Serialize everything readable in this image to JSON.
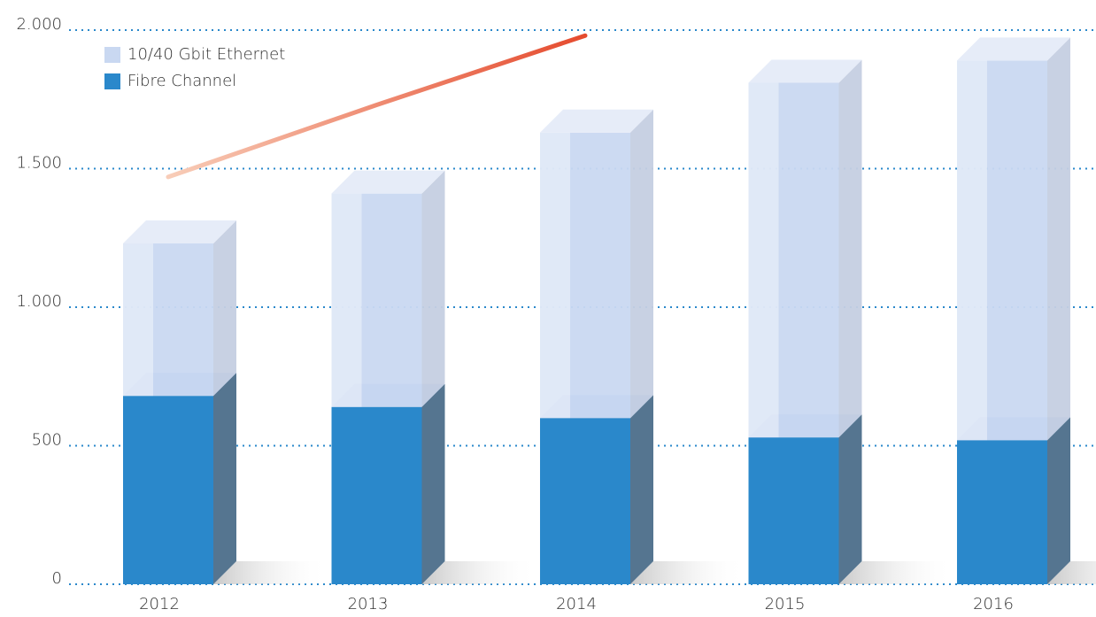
{
  "chart_data": {
    "type": "bar",
    "stacked": true,
    "three_d": true,
    "categories": [
      "2012",
      "2013",
      "2014",
      "2015",
      "2016"
    ],
    "series": [
      {
        "name": "Fibre Channel",
        "color": "#2a88cb",
        "values": [
          680,
          640,
          600,
          530,
          520
        ]
      },
      {
        "name": "10/40 Gbit Ethernet",
        "color": "#c9d8f1",
        "values": [
          550,
          770,
          1030,
          1280,
          1370
        ]
      },
      {
        "type": "line",
        "color": "#e54b2e",
        "values": [
          1470,
          1730,
          1980,
          null,
          null
        ]
      }
    ],
    "ylim": [
      0,
      2000
    ],
    "yticks": [
      0,
      500,
      {
        "value": 1000,
        "label": "1.000"
      },
      {
        "value": 1500,
        "label": "1.500"
      },
      {
        "value": 2000,
        "label": "2.000"
      }
    ],
    "grid": true,
    "legend": "top-left"
  }
}
